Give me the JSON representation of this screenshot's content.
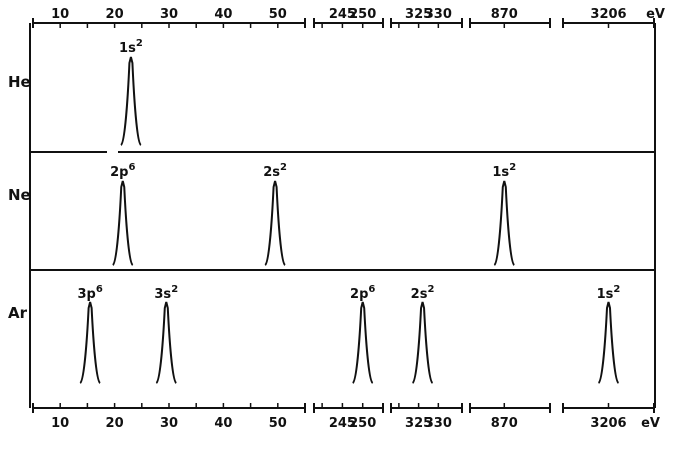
{
  "chart_data": {
    "type": "line",
    "title": "",
    "xlabel": "eV",
    "ylabel": "",
    "grid": false,
    "unit": "eV",
    "axis_segments": [
      {
        "ticks": [
          10,
          15,
          20,
          25,
          30,
          35,
          40,
          45,
          50
        ],
        "labels": [
          "10",
          "20",
          "30",
          "40",
          "50"
        ]
      },
      {
        "ticks": [
          240,
          245,
          250
        ],
        "labels": [
          "245",
          "250"
        ]
      },
      {
        "ticks": [
          320,
          325,
          330
        ],
        "labels": [
          "325",
          "330"
        ]
      },
      {
        "ticks": [
          870
        ],
        "labels": [
          "870"
        ]
      },
      {
        "ticks": [
          3206
        ],
        "labels": [
          "3206"
        ]
      }
    ],
    "panels": [
      {
        "element": "He",
        "peaks": [
          {
            "orbital": "1s",
            "occupancy": "2",
            "x": 23.0
          }
        ]
      },
      {
        "element": "Ne",
        "peaks": [
          {
            "orbital": "2p",
            "occupancy": "6",
            "x": 21.5
          },
          {
            "orbital": "2s",
            "occupancy": "2",
            "x": 49.5
          },
          {
            "orbital": "1s",
            "occupancy": "2",
            "x": 870
          }
        ]
      },
      {
        "element": "Ar",
        "peaks": [
          {
            "orbital": "3p",
            "occupancy": "6",
            "x": 15.5
          },
          {
            "orbital": "3s",
            "occupancy": "2",
            "x": 29.5
          },
          {
            "orbital": "2p",
            "occupancy": "6",
            "x": 250
          },
          {
            "orbital": "2s",
            "occupancy": "2",
            "x": 326
          },
          {
            "orbital": "1s",
            "occupancy": "2",
            "x": 3206
          }
        ]
      }
    ]
  }
}
